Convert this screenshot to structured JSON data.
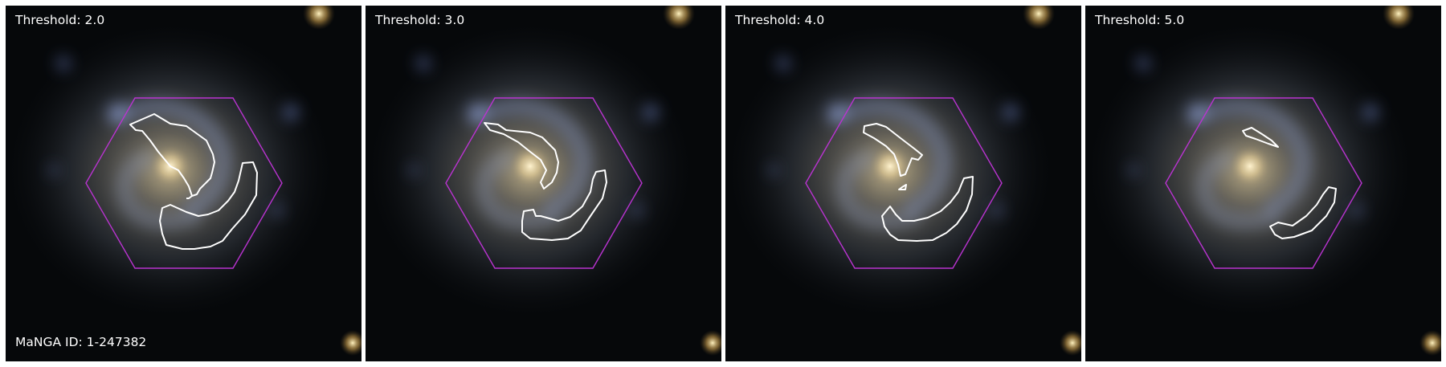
{
  "panels": [
    {
      "label": "Threshold: 2.0"
    },
    {
      "label": "Threshold: 3.0"
    },
    {
      "label": "Threshold: 4.0"
    },
    {
      "label": "Threshold: 5.0"
    }
  ],
  "footer_label": "MaNGA ID: 1-247382",
  "colors": {
    "hexagon": "#b933d0",
    "contour": "#ffffff",
    "background": "#06080a"
  },
  "icons": [
    "galaxy-image",
    "ifu-hexagon",
    "contour-outline"
  ]
}
